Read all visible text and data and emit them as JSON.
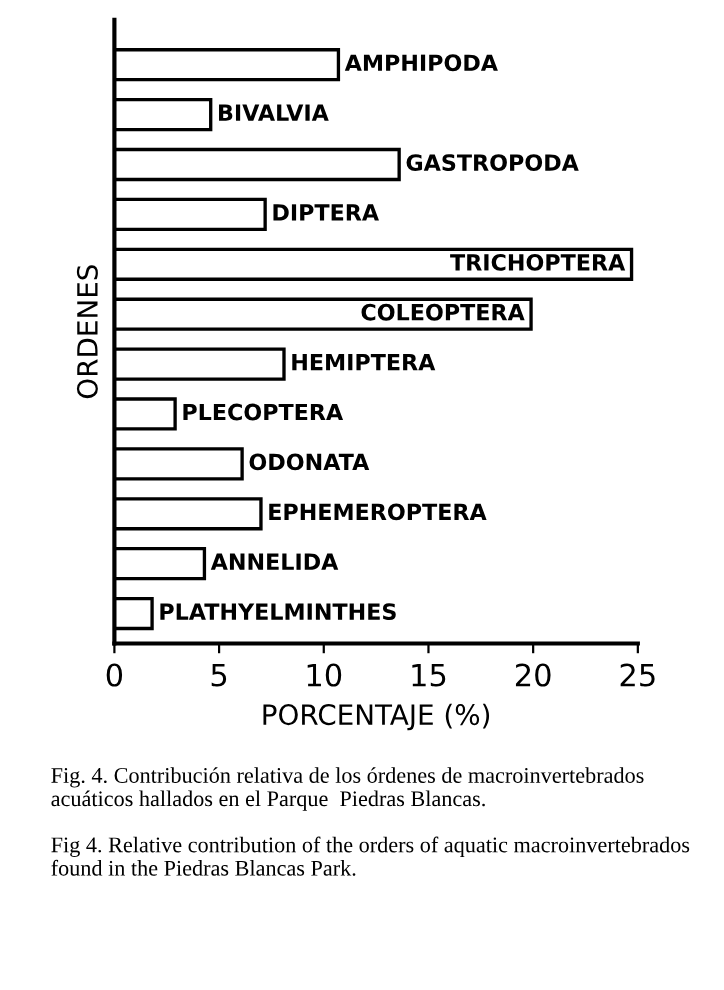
{
  "chart_data": {
    "type": "bar",
    "orientation": "horizontal",
    "ylabel": "ORDENES",
    "xlabel": "PORCENTAJE (%)",
    "categories": [
      "AMPHIPODA",
      "BIVALVIA",
      "GASTROPODA",
      "DIPTERA",
      "TRICHOPTERA",
      "COLEOPTERA",
      "HEMIPTERA",
      "PLECOPTERA",
      "ODONATA",
      "EPHEMEROPTERA",
      "ANNELIDA",
      "PLATHYELMINTHES"
    ],
    "values": [
      10.7,
      4.6,
      13.6,
      7.2,
      24.7,
      19.9,
      8.1,
      2.9,
      6.1,
      7.0,
      4.3,
      1.8
    ],
    "color": "#ffffff",
    "xlim": [
      0,
      25
    ],
    "xticks": [
      0,
      5,
      10,
      15,
      20,
      25
    ],
    "grid": false,
    "annotations": [
      "Fig. 4. Contribución relativa de los órdenes de macroinvertebrados acuáticos hallados en el Parque  Piedras Blancas.",
      "Fig 4. Relative contribution of the orders of aquatic macroinvertebrados found in the Piedras Blancas Park."
    ]
  }
}
